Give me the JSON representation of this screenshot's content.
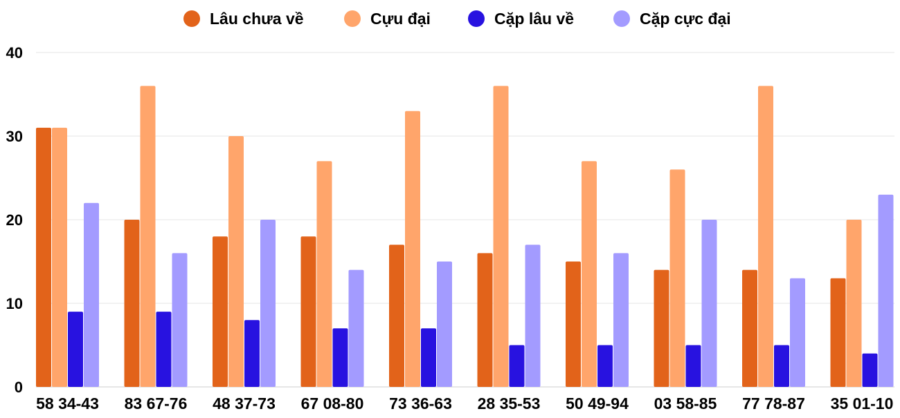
{
  "chart_data": {
    "type": "bar",
    "title": "",
    "xlabel": "",
    "ylabel": "",
    "ylim": [
      0,
      40
    ],
    "yticks": [
      0,
      10,
      20,
      30,
      40
    ],
    "grid": true,
    "legend_position": "top",
    "categories": [
      "58 34-43",
      "83 67-76",
      "48 37-73",
      "67 08-80",
      "73 36-63",
      "28 35-53",
      "50 49-94",
      "03 58-85",
      "77 78-87",
      "35 01-10"
    ],
    "series": [
      {
        "name": "Lâu chưa về",
        "color": "#E2631A",
        "values": [
          31,
          20,
          18,
          18,
          17,
          16,
          15,
          14,
          14,
          13
        ]
      },
      {
        "name": "Cựu đại",
        "color": "#FFA56B",
        "values": [
          31,
          36,
          30,
          27,
          33,
          36,
          27,
          26,
          36,
          20
        ]
      },
      {
        "name": "Cặp lâu về",
        "color": "#2812E0",
        "values": [
          9,
          9,
          8,
          7,
          7,
          5,
          5,
          5,
          5,
          4
        ]
      },
      {
        "name": "Cặp cực đại",
        "color": "#A39BFF",
        "values": [
          22,
          16,
          20,
          14,
          15,
          17,
          16,
          20,
          13,
          23
        ]
      }
    ]
  }
}
